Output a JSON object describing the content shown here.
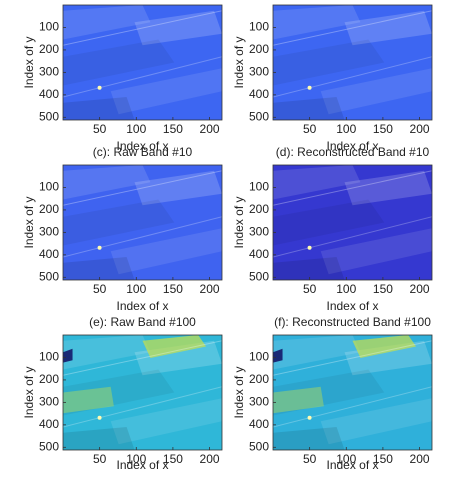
{
  "chart_data": [
    {
      "type": "image",
      "xlabel": "Index of x",
      "ylabel": "Index of y",
      "color": "#3d66f2",
      "xlim": [
        0,
        217
      ],
      "ylim": [
        0,
        512
      ],
      "xticks": [
        50,
        100,
        150,
        200
      ],
      "yticks": [
        100,
        200,
        300,
        400,
        500
      ]
    },
    {
      "type": "image",
      "xlabel": "Index of x",
      "ylabel": "Index of y",
      "color": "#3d66f2",
      "xlim": [
        0,
        217
      ],
      "ylim": [
        0,
        512
      ],
      "xticks": [
        50,
        100,
        150,
        200
      ],
      "yticks": [
        100,
        200,
        300,
        400,
        500
      ]
    },
    {
      "type": "image",
      "title": "(c): Raw Band #10",
      "xlabel": "Index of x",
      "ylabel": "Index of y",
      "color": "#3f63f0",
      "xlim": [
        0,
        217
      ],
      "ylim": [
        0,
        512
      ],
      "xticks": [
        50,
        100,
        150,
        200
      ],
      "yticks": [
        100,
        200,
        300,
        400,
        500
      ]
    },
    {
      "type": "image",
      "title": "(d): Reconstructed Band #10",
      "xlabel": "Index of x",
      "ylabel": "Index of y",
      "color": "#3538d0",
      "xlim": [
        0,
        217
      ],
      "ylim": [
        0,
        512
      ],
      "xticks": [
        50,
        100,
        150,
        200
      ],
      "yticks": [
        100,
        200,
        300,
        400,
        500
      ]
    },
    {
      "type": "image",
      "title": "(e): Raw Band #100",
      "xlabel": "Index of x",
      "ylabel": "Index of y",
      "color": "#2fb7d8",
      "xlim": [
        0,
        217
      ],
      "ylim": [
        0,
        512
      ],
      "xticks": [
        50,
        100,
        150,
        200
      ],
      "yticks": [
        100,
        200,
        300,
        400,
        500
      ]
    },
    {
      "type": "image",
      "title": "(f): Reconstructed Band #100",
      "xlabel": "Index of x",
      "ylabel": "Index of y",
      "color": "#2fb0da",
      "xlim": [
        0,
        217
      ],
      "ylim": [
        0,
        512
      ],
      "xticks": [
        50,
        100,
        150,
        200
      ],
      "yticks": [
        100,
        200,
        300,
        400,
        500
      ]
    }
  ]
}
